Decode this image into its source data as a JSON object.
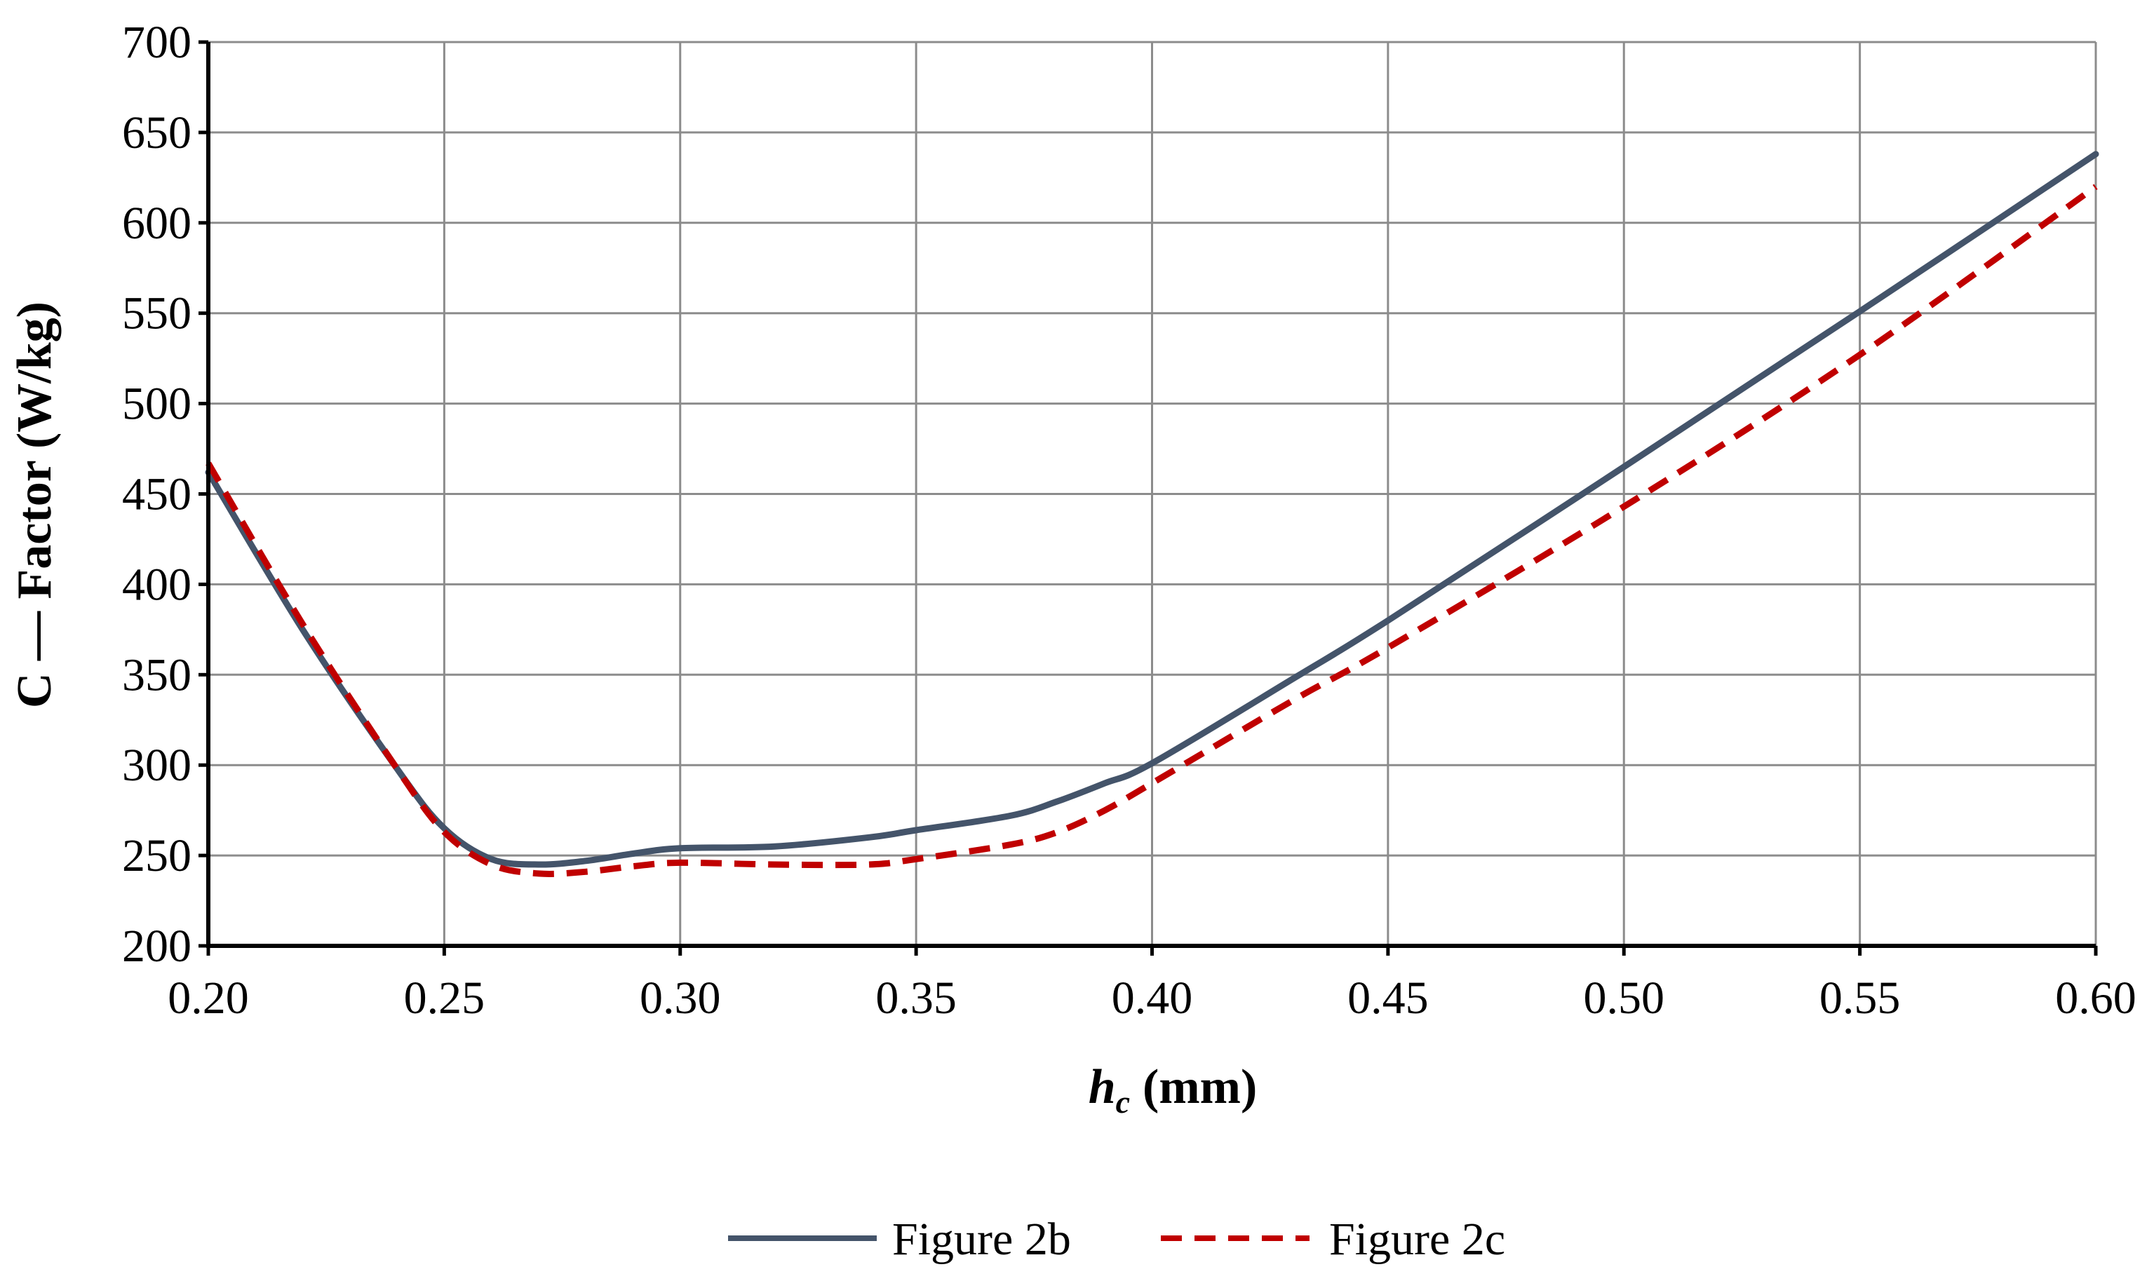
{
  "chart_data": {
    "type": "line",
    "title": "",
    "xlabel_main": "h",
    "xlabel_sub": "c",
    "xlabel_unit": "(mm)",
    "ylabel": "C — Factor (W/kg)",
    "xlim": [
      0.2,
      0.6
    ],
    "ylim": [
      200,
      700
    ],
    "x_ticks": [
      "0.20",
      "0.25",
      "0.30",
      "0.35",
      "0.40",
      "0.45",
      "0.50",
      "0.55",
      "0.60"
    ],
    "y_ticks": [
      "200",
      "250",
      "300",
      "350",
      "400",
      "450",
      "500",
      "550",
      "600",
      "650",
      "700"
    ],
    "grid": true,
    "legend_position": "bottom",
    "series": [
      {
        "name": "Figure 2b",
        "color": "#44546a",
        "style": "solid",
        "x": [
          0.2,
          0.22,
          0.24,
          0.25,
          0.26,
          0.27,
          0.28,
          0.29,
          0.3,
          0.32,
          0.34,
          0.35,
          0.37,
          0.38,
          0.39,
          0.4,
          0.43,
          0.45,
          0.5,
          0.55,
          0.6
        ],
        "y": [
          462,
          375,
          298,
          265,
          248,
          245,
          247,
          251,
          254,
          255,
          260,
          264,
          272,
          280,
          290,
          301,
          348,
          380,
          465,
          551,
          638
        ]
      },
      {
        "name": "Figure 2c",
        "color": "#c00000",
        "style": "dashed",
        "x": [
          0.2,
          0.22,
          0.24,
          0.25,
          0.26,
          0.27,
          0.28,
          0.29,
          0.3,
          0.32,
          0.34,
          0.35,
          0.37,
          0.38,
          0.39,
          0.4,
          0.43,
          0.45,
          0.5,
          0.55,
          0.6
        ],
        "y": [
          467,
          378,
          298,
          263,
          245,
          240,
          241,
          244,
          246,
          245,
          245,
          248,
          256,
          263,
          275,
          290,
          336,
          365,
          443,
          527,
          620
        ]
      }
    ]
  }
}
